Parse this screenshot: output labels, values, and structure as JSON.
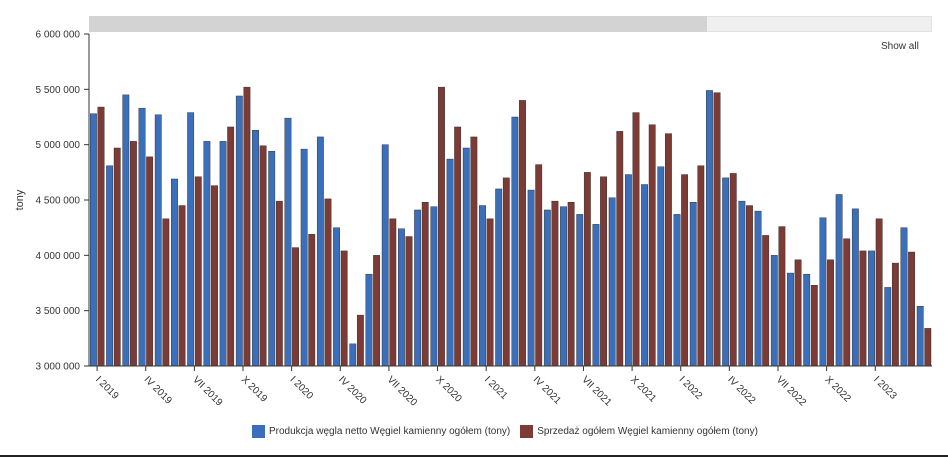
{
  "chart_data": {
    "type": "bar",
    "ylabel": "tony",
    "ylim": [
      3000000,
      6000000
    ],
    "yticks": [
      3000000,
      3500000,
      4000000,
      4500000,
      5000000,
      5500000,
      6000000
    ],
    "ytick_labels": [
      "3 000 000",
      "3 500 000",
      "4 000 000",
      "4 500 000",
      "5 000 000",
      "5 500 000",
      "6 000 000"
    ],
    "x_tick_labels": [
      {
        "index": 0,
        "label": "I 2019"
      },
      {
        "index": 3,
        "label": "IV 2019"
      },
      {
        "index": 6,
        "label": "VII 2019"
      },
      {
        "index": 9,
        "label": "X 2019"
      },
      {
        "index": 12,
        "label": "I 2020"
      },
      {
        "index": 15,
        "label": "IV 2020"
      },
      {
        "index": 18,
        "label": "VII 2020"
      },
      {
        "index": 21,
        "label": "X 2020"
      },
      {
        "index": 24,
        "label": "I 2021"
      },
      {
        "index": 27,
        "label": "IV 2021"
      },
      {
        "index": 30,
        "label": "VII 2021"
      },
      {
        "index": 33,
        "label": "X 2021"
      },
      {
        "index": 36,
        "label": "I 2022"
      },
      {
        "index": 39,
        "label": "IV 2022"
      },
      {
        "index": 42,
        "label": "VII 2022"
      },
      {
        "index": 45,
        "label": "X 2022"
      },
      {
        "index": 48,
        "label": "I 2023"
      }
    ],
    "series": [
      {
        "name": "Produkcja węgla netto Węgiel kamienny ogółem (tony)",
        "color": "#3c6fba",
        "values": [
          5280000,
          4810000,
          5450000,
          5330000,
          5270000,
          4690000,
          5290000,
          5030000,
          5030000,
          5440000,
          5130000,
          4940000,
          5240000,
          4960000,
          5070000,
          4250000,
          3200000,
          3830000,
          5000000,
          4240000,
          4410000,
          4440000,
          4870000,
          4970000,
          4450000,
          4600000,
          5250000,
          4590000,
          4410000,
          4440000,
          4370000,
          4280000,
          4520000,
          4730000,
          4640000,
          4800000,
          4370000,
          4480000,
          5490000,
          4700000,
          4490000,
          4400000,
          4000000,
          3840000,
          3830000,
          4340000,
          4550000,
          4420000,
          4040000,
          3710000,
          4250000,
          3540000
        ]
      },
      {
        "name": "Sprzedaż ogółem Węgiel kamienny ogółem (tony)",
        "color": "#7d3b35",
        "values": [
          5340000,
          4970000,
          5030000,
          4890000,
          4330000,
          4450000,
          4710000,
          4630000,
          5160000,
          5520000,
          4990000,
          4490000,
          4070000,
          4190000,
          4510000,
          4040000,
          3460000,
          4000000,
          4330000,
          4170000,
          4480000,
          5520000,
          5160000,
          5070000,
          4330000,
          4700000,
          5400000,
          4820000,
          4490000,
          4480000,
          4750000,
          4710000,
          5120000,
          5290000,
          5180000,
          5100000,
          4730000,
          4810000,
          5470000,
          4740000,
          4450000,
          4180000,
          4260000,
          3960000,
          3730000,
          3960000,
          4150000,
          4040000,
          4330000,
          3930000,
          4030000,
          3340000
        ]
      }
    ],
    "grid": false,
    "legend": "bottom-center",
    "x_scrollbar": true
  },
  "controls": {
    "show_all_label": "Show all"
  }
}
